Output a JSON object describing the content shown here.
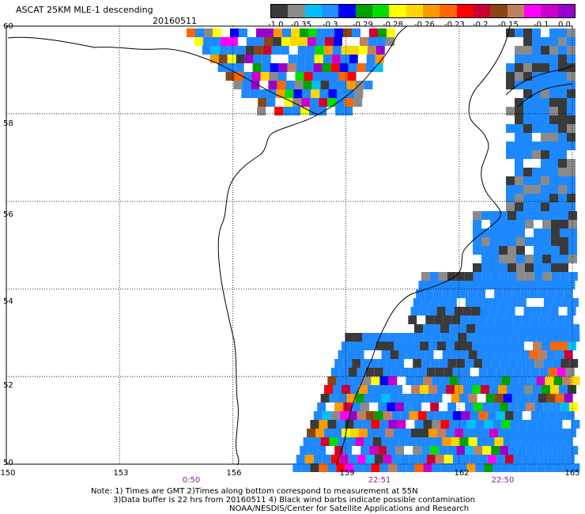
{
  "header": {
    "title": "ASCAT 25KM MLE-1 descending",
    "date": "20160511"
  },
  "colorbar": {
    "labels": [
      "-1.0",
      "-0.35",
      "-0.3",
      "-0.29",
      "-0.28",
      "-0.26",
      "-0.23",
      "-0.2",
      "-0.15",
      "-0.1",
      "0.0"
    ],
    "colors": [
      "#3a3a3a",
      "#8a8a8a",
      "#00bfff",
      "#1e90ff",
      "#0000ff",
      "#00a000",
      "#00dd00",
      "#ffff00",
      "#ffd700",
      "#ff9900",
      "#ff6600",
      "#ff0000",
      "#cc0033",
      "#8b4513",
      "#c08060",
      "#ff00ff",
      "#cc00cc",
      "#9900cc"
    ]
  },
  "axes": {
    "lat_labels": [
      "60",
      "58",
      "56",
      "54",
      "52",
      "50"
    ],
    "lon_labels": [
      "150",
      "153",
      "156",
      "159",
      "162",
      "165"
    ],
    "lat_range": [
      50,
      60
    ],
    "lon_range": [
      150,
      165
    ],
    "gridlines": true
  },
  "times": [
    "0:50",
    "22:51",
    "22:50"
  ],
  "times_lon": [
    154.5,
    159.5,
    162.8
  ],
  "note": {
    "line1": "Note: 1) Times are GMT 2)Times along bottom correspond to measurement at 55N",
    "line2": "3)Data buffer is 22 hrs from 20160511 4) Black wind barbs indicate possible contamination",
    "line3": "NOAA/NESDIS/Center for Satellite Applications and Research"
  }
}
